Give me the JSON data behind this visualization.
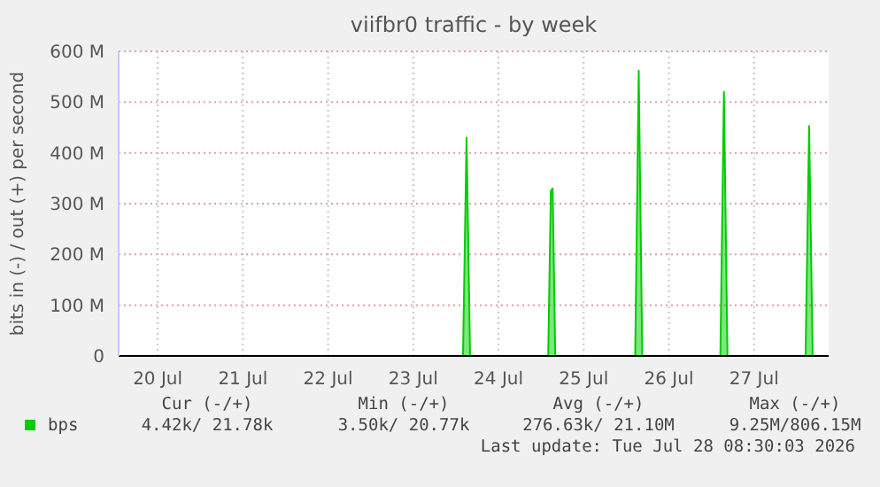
{
  "chart_data": {
    "type": "area",
    "title": "viifbr0 traffic - by week",
    "ylabel": "bits in (-) / out (+) per second",
    "xlim": [
      "2026-07-20T01:00",
      "2026-07-28T09:00"
    ],
    "xticks": [
      {
        "value": "2026-07-20T12:00",
        "label": "20 Jul"
      },
      {
        "value": "2026-07-21T12:00",
        "label": "21 Jul"
      },
      {
        "value": "2026-07-22T12:00",
        "label": "22 Jul"
      },
      {
        "value": "2026-07-23T12:00",
        "label": "23 Jul"
      },
      {
        "value": "2026-07-24T12:00",
        "label": "24 Jul"
      },
      {
        "value": "2026-07-25T12:00",
        "label": "25 Jul"
      },
      {
        "value": "2026-07-26T12:00",
        "label": "26 Jul"
      },
      {
        "value": "2026-07-27T12:00",
        "label": "27 Jul"
      }
    ],
    "ylim": [
      0,
      600000000
    ],
    "yticks": [
      {
        "value": 0,
        "label": "0"
      },
      {
        "value": 100000000,
        "label": "100 M"
      },
      {
        "value": 200000000,
        "label": "200 M"
      },
      {
        "value": 300000000,
        "label": "300 M"
      },
      {
        "value": 400000000,
        "label": "400 M"
      },
      {
        "value": 500000000,
        "label": "500 M"
      },
      {
        "value": 600000000,
        "label": "600 M"
      }
    ],
    "grid": true,
    "legend": "bottom left",
    "series": [
      {
        "name": "bps",
        "color": "#00cc00",
        "x": [
          "2026-07-20T01:00",
          "2026-07-24T02:00",
          "2026-07-24T03:00",
          "2026-07-24T04:00",
          "2026-07-25T02:00",
          "2026-07-25T02:45",
          "2026-07-25T03:15",
          "2026-07-25T04:00",
          "2026-07-26T02:30",
          "2026-07-26T03:30",
          "2026-07-26T04:30",
          "2026-07-27T02:30",
          "2026-07-27T03:30",
          "2026-07-27T04:30",
          "2026-07-28T02:30",
          "2026-07-28T03:30",
          "2026-07-28T04:30",
          "2026-07-28T08:30"
        ],
        "values": [
          0,
          0,
          430000000,
          0,
          0,
          325000000,
          330000000,
          0,
          0,
          562000000,
          0,
          0,
          520000000,
          0,
          0,
          453000000,
          0,
          0
        ]
      }
    ],
    "annotations": [
      "Cur (-/+)",
      "Min (-/+)",
      "Avg (-/+)",
      "Max (-/+)",
      "4.42k/ 21.78k",
      "3.50k/ 20.77k",
      "276.63k/ 21.10M",
      "9.25M/806.15M",
      "Last update: Tue Jul 28 08:30:03 2026"
    ]
  }
}
